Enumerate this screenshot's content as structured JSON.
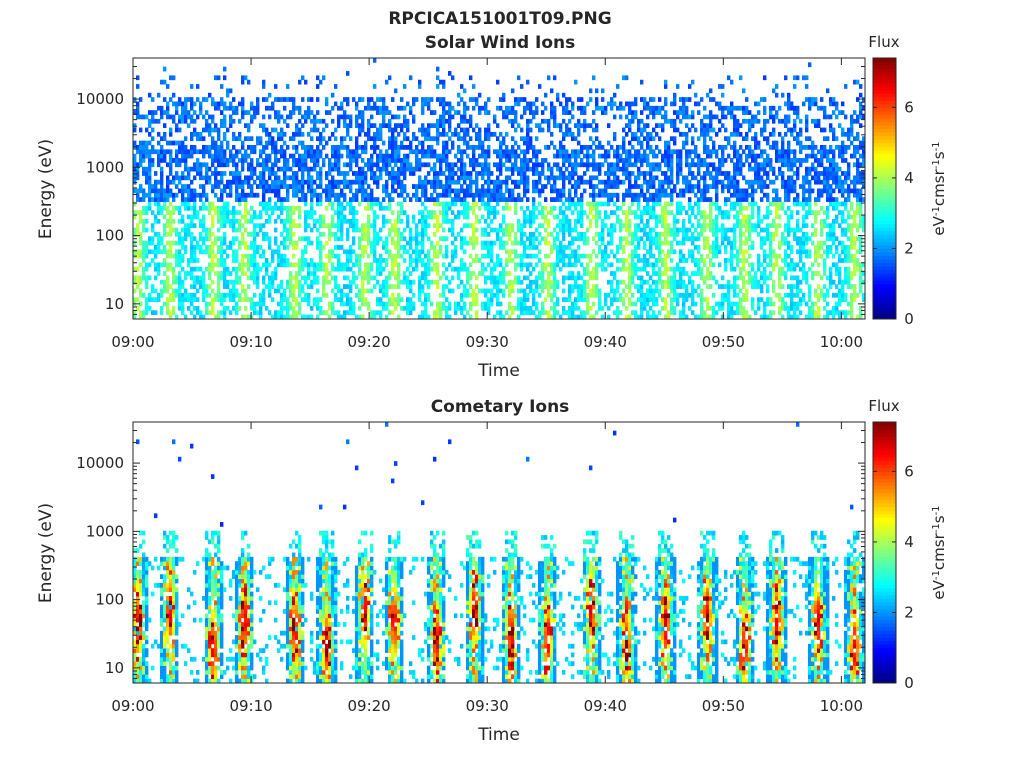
{
  "figure": {
    "title": "RPCICA151001T09.PNG"
  },
  "chart_data": [
    {
      "type": "heatmap",
      "title": "Solar Wind Ions",
      "xlabel": "Time",
      "ylabel": "Energy (eV)",
      "x_ticks": [
        "09:00",
        "09:10",
        "09:20",
        "09:30",
        "09:40",
        "09:50",
        "10:00"
      ],
      "x_range": [
        "09:00",
        "10:02"
      ],
      "y_scale": "log",
      "y_ticks": [
        "10",
        "100",
        "1000",
        "10000"
      ],
      "y_range": [
        6,
        40000
      ],
      "colorbar": {
        "label": "Flux",
        "units": "eV-1cm-2sr-1s-1",
        "ticks": [
          "0",
          "2",
          "4",
          "6"
        ],
        "range": [
          0,
          7.4
        ],
        "colormap": "jet"
      },
      "pattern": "noise",
      "band_centers_min": [
        0.3,
        3,
        6.7,
        9.3,
        13.6,
        16.3,
        19.5,
        22,
        25.6,
        28.8,
        31.9,
        35,
        38.7,
        41.7,
        45,
        48.5,
        51.7,
        54.4,
        57.9,
        61
      ]
    },
    {
      "type": "heatmap",
      "title": "Cometary Ions",
      "xlabel": "Time",
      "ylabel": "Energy (eV)",
      "x_ticks": [
        "09:00",
        "09:10",
        "09:20",
        "09:30",
        "09:40",
        "09:50",
        "10:00"
      ],
      "x_range": [
        "09:00",
        "10:02"
      ],
      "y_scale": "log",
      "y_ticks": [
        "10",
        "100",
        "1000",
        "10000"
      ],
      "y_range": [
        6,
        40000
      ],
      "colorbar": {
        "label": "Flux",
        "units": "eV-1cm-2sr-1s-1",
        "ticks": [
          "0",
          "2",
          "4",
          "6"
        ],
        "range": [
          0,
          7.4
        ],
        "colormap": "jet"
      },
      "pattern": "bursts",
      "band_centers_min": [
        0.3,
        3,
        6.7,
        9.3,
        13.6,
        16.3,
        19.5,
        22,
        25.6,
        28.8,
        31.9,
        35,
        38.7,
        41.7,
        45,
        48.5,
        51.7,
        54.4,
        57.9,
        61
      ]
    }
  ]
}
